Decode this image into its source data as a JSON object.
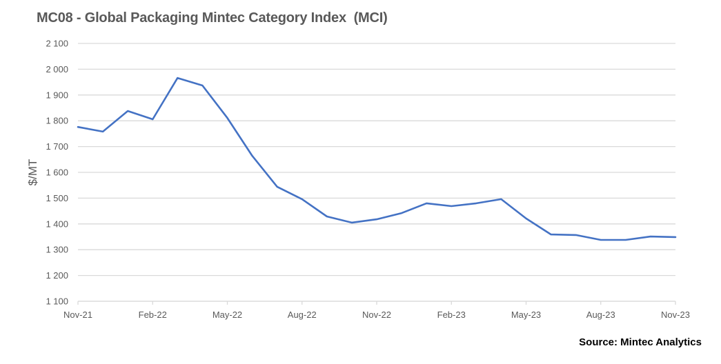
{
  "title": "MC08 - Global Packaging Mintec Category Index  (MCI)",
  "source": "Source: Mintec Analytics",
  "colors": {
    "line": "#4472C4",
    "grid": "#D9D9D9",
    "text": "#595959"
  },
  "chart_data": {
    "type": "line",
    "title": "MC08 - Global Packaging Mintec Category Index  (MCI)",
    "xlabel": "",
    "ylabel": "$/MT",
    "ylim": [
      1100,
      2100
    ],
    "yticks": [
      1100,
      1200,
      1300,
      1400,
      1500,
      1600,
      1700,
      1800,
      1900,
      2000,
      2100
    ],
    "ytick_labels": [
      "1 100",
      "1 200",
      "1 300",
      "1 400",
      "1 500",
      "1 600",
      "1 700",
      "1 800",
      "1 900",
      "2 000",
      "2 100"
    ],
    "xtick_labels": [
      "Nov-21",
      "Feb-22",
      "May-22",
      "Aug-22",
      "Nov-22",
      "Feb-23",
      "May-23",
      "Aug-23",
      "Nov-23"
    ],
    "grid": true,
    "legend": null,
    "x": [
      "Nov-21",
      "Dec-21",
      "Jan-22",
      "Feb-22",
      "Mar-22",
      "Apr-22",
      "May-22",
      "Jun-22",
      "Jul-22",
      "Aug-22",
      "Sep-22",
      "Oct-22",
      "Nov-22",
      "Dec-22",
      "Jan-23",
      "Feb-23",
      "Mar-23",
      "Apr-23",
      "May-23",
      "Jun-23",
      "Jul-23",
      "Aug-23",
      "Sep-23",
      "Oct-23",
      "Nov-23"
    ],
    "series": [
      {
        "name": "MCI",
        "values": [
          1776,
          1758,
          1838,
          1806,
          1966,
          1937,
          1811,
          1664,
          1544,
          1496,
          1429,
          1405,
          1418,
          1442,
          1480,
          1469,
          1480,
          1496,
          1421,
          1359,
          1357,
          1338,
          1338,
          1351,
          1349
        ]
      }
    ]
  }
}
